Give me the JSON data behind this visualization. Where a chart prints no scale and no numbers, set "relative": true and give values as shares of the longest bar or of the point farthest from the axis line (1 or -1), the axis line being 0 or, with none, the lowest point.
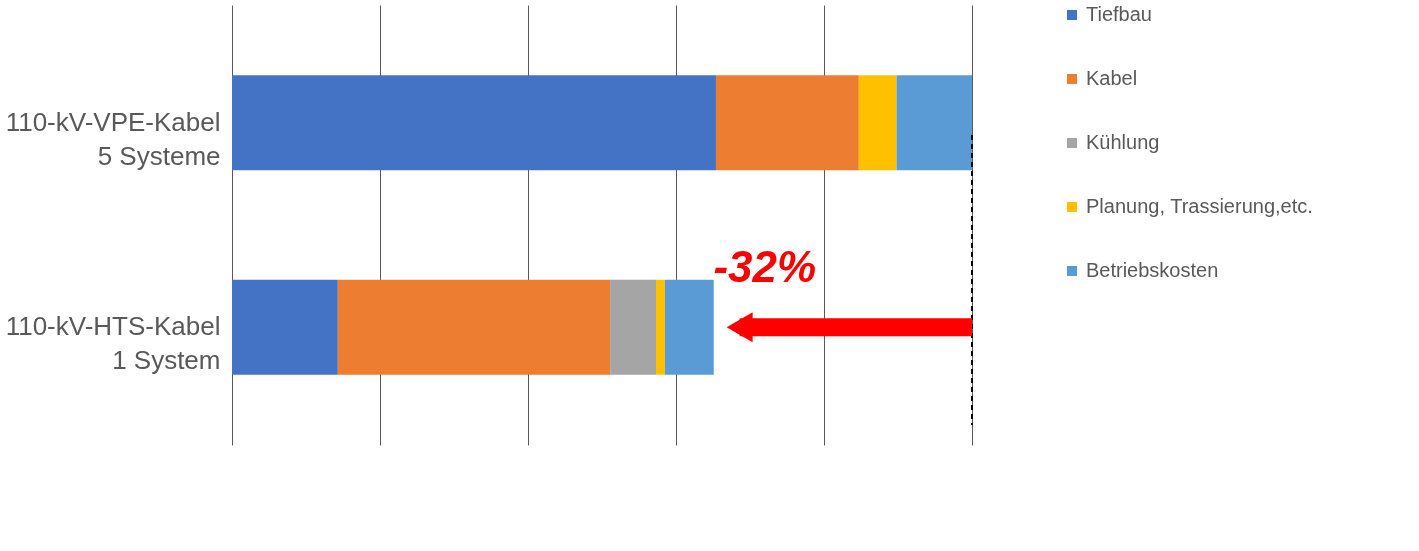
{
  "chart_data": {
    "type": "bar",
    "orientation": "horizontal",
    "stacked": true,
    "relative": true,
    "categories": [
      "110-kV-VPE-Kabel\n5 Systeme",
      "110-kV-HTS-Kabel\n1 System"
    ],
    "series": [
      {
        "name": "Tiefbau",
        "color": "#4472c4",
        "values": [
          0.654,
          0.143
        ]
      },
      {
        "name": "Kabel",
        "color": "#ed7d31",
        "values": [
          0.193,
          0.368
        ]
      },
      {
        "name": "Kühlung",
        "color": "#a5a5a5",
        "values": [
          0,
          0.062
        ]
      },
      {
        "name": "Planung, Trassierung,etc.",
        "color": "#ffc000",
        "values": [
          0.051,
          0.012
        ]
      },
      {
        "name": "Betriebskosten",
        "color": "#5b9bd5",
        "values": [
          0.102,
          0.066
        ]
      }
    ],
    "ref_lines": [
      {
        "axis": "x",
        "value": 1,
        "line_style": "dashed",
        "color": "#000000"
      }
    ],
    "annotations": [
      "-32%"
    ],
    "grid": "x",
    "legend": "right"
  }
}
